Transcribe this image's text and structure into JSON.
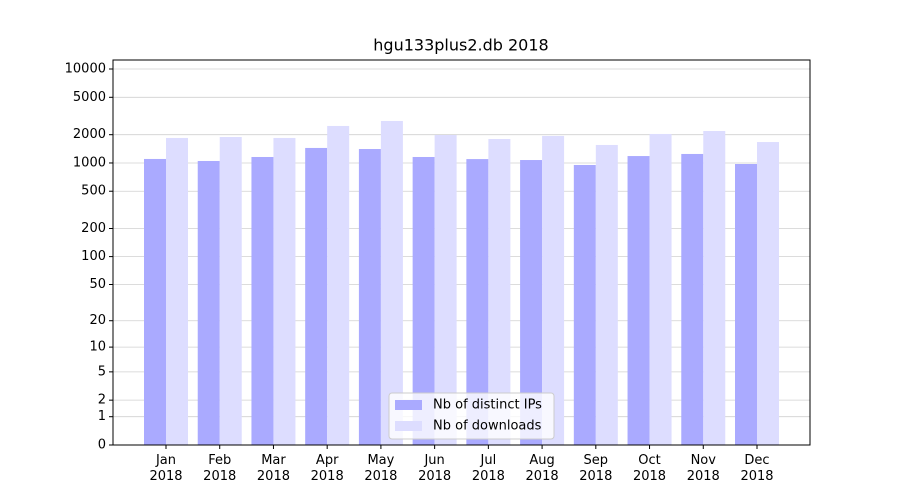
{
  "chart_data": {
    "type": "bar",
    "title": "hgu133plus2.db 2018",
    "categories": [
      "Jan\n2018",
      "Feb\n2018",
      "Mar\n2018",
      "Apr\n2018",
      "May\n2018",
      "Jun\n2018",
      "Jul\n2018",
      "Aug\n2018",
      "Sep\n2018",
      "Oct\n2018",
      "Nov\n2018",
      "Dec\n2018"
    ],
    "series": [
      {
        "name": "Nb of distinct IPs",
        "color": "#aaaaff",
        "values": [
          1103,
          1050,
          1158,
          1445,
          1408,
          1158,
          1100,
          1075,
          952,
          1185,
          1247,
          975
        ]
      },
      {
        "name": "Nb of downloads",
        "color": "#ddddff",
        "values": [
          1845,
          1890,
          1845,
          2478,
          2800,
          1985,
          1800,
          1940,
          1555,
          2035,
          2190,
          1670
        ]
      }
    ],
    "yscale": "log1p",
    "ylim": [
      0,
      12470
    ],
    "yticks": [
      0,
      1,
      2,
      5,
      10,
      20,
      50,
      100,
      200,
      500,
      1000,
      2000,
      5000,
      10000
    ],
    "grid": true,
    "legend": "lower center"
  }
}
